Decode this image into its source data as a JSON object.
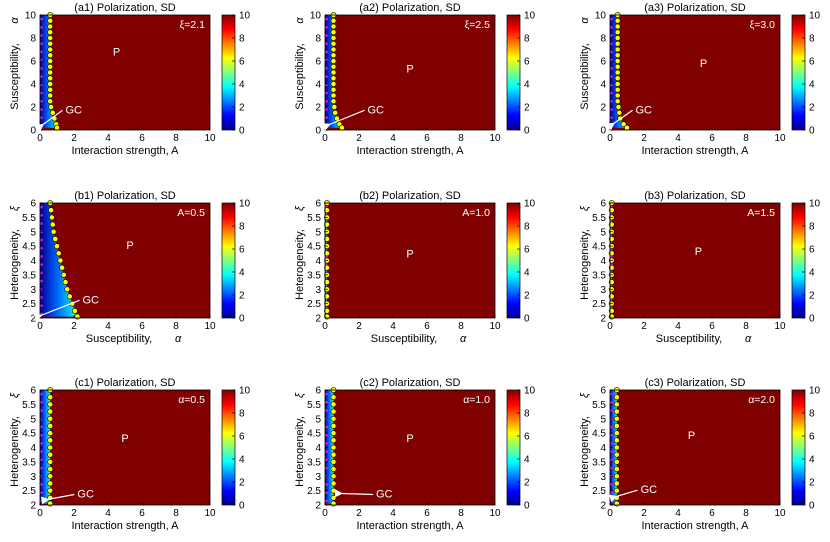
{
  "chart_data": [
    {
      "id": "a1",
      "type": "heatmap",
      "title": "(a1) Polarization, SD",
      "xlabel": "Interaction strength, A",
      "ylabel": "Susceptibility,",
      "ylabel_sym": "α",
      "param": "ξ=2.1",
      "xlim": [
        0,
        10
      ],
      "ylim": [
        0,
        10
      ],
      "xticks": [
        "0",
        "2",
        "4",
        "6",
        "8",
        "10"
      ],
      "yticks": [
        "0",
        "2",
        "4",
        "6",
        "8",
        "10"
      ],
      "cbar_ticks": [
        "0",
        "2",
        "4",
        "6",
        "8",
        "10"
      ],
      "label_p": "P",
      "label_gc": "GC",
      "p_pos": [
        4.5,
        6.5
      ],
      "gc_text": [
        1.5,
        1.8
      ],
      "gc_arrow": [
        0.2,
        0.5
      ],
      "boundary": [
        [
          0.6,
          10
        ],
        [
          0.6,
          9.5
        ],
        [
          0.6,
          9
        ],
        [
          0.6,
          8.5
        ],
        [
          0.6,
          8
        ],
        [
          0.6,
          7.5
        ],
        [
          0.6,
          7
        ],
        [
          0.6,
          6.5
        ],
        [
          0.6,
          6
        ],
        [
          0.6,
          5.5
        ],
        [
          0.6,
          5
        ],
        [
          0.6,
          4.5
        ],
        [
          0.6,
          4
        ],
        [
          0.6,
          3.5
        ],
        [
          0.6,
          3
        ],
        [
          0.6,
          2.5
        ],
        [
          0.65,
          2
        ],
        [
          0.75,
          1.5
        ],
        [
          0.85,
          1
        ],
        [
          0.95,
          0.5
        ],
        [
          1.0,
          0.2
        ]
      ]
    },
    {
      "id": "a2",
      "type": "heatmap",
      "title": "(a2) Polarization, SD",
      "xlabel": "Interaction strength, A",
      "ylabel": "Susceptibility,",
      "ylabel_sym": "α",
      "param": "ξ=2.5",
      "xlim": [
        0,
        10
      ],
      "ylim": [
        0,
        10
      ],
      "xticks": [
        "0",
        "2",
        "4",
        "6",
        "8",
        "10"
      ],
      "yticks": [
        "0",
        "2",
        "4",
        "6",
        "8",
        "10"
      ],
      "cbar_ticks": [
        "0",
        "2",
        "4",
        "6",
        "8",
        "10"
      ],
      "label_p": "P",
      "label_gc": "GC",
      "p_pos": [
        5,
        5
      ],
      "gc_text": [
        2.5,
        1.8
      ],
      "gc_arrow": [
        0.3,
        0.5
      ],
      "boundary": [
        [
          0.5,
          10
        ],
        [
          0.5,
          9.5
        ],
        [
          0.5,
          9
        ],
        [
          0.5,
          8.5
        ],
        [
          0.5,
          8
        ],
        [
          0.5,
          7.5
        ],
        [
          0.5,
          7
        ],
        [
          0.5,
          6.5
        ],
        [
          0.5,
          6
        ],
        [
          0.5,
          5.5
        ],
        [
          0.5,
          5
        ],
        [
          0.5,
          4.5
        ],
        [
          0.5,
          4
        ],
        [
          0.5,
          3.5
        ],
        [
          0.5,
          3
        ],
        [
          0.5,
          2.5
        ],
        [
          0.55,
          2
        ],
        [
          0.6,
          1.5
        ],
        [
          0.7,
          1
        ],
        [
          0.85,
          0.5
        ],
        [
          1.0,
          0.2
        ]
      ]
    },
    {
      "id": "a3",
      "type": "heatmap",
      "title": "(a3) Polarization, SD",
      "xlabel": "Interaction strength, A",
      "ylabel": "Susceptibility,",
      "ylabel_sym": "α",
      "param": "ξ=3.0",
      "xlim": [
        0,
        10
      ],
      "ylim": [
        0,
        10
      ],
      "xticks": [
        "0",
        "2",
        "4",
        "6",
        "8",
        "10"
      ],
      "yticks": [
        "0",
        "2",
        "4",
        "6",
        "8",
        "10"
      ],
      "cbar_ticks": [
        "0",
        "2",
        "4",
        "6",
        "8",
        "10"
      ],
      "label_p": "P",
      "label_gc": "GC",
      "p_pos": [
        5.5,
        5.5
      ],
      "gc_text": [
        1.5,
        1.8
      ],
      "gc_arrow": [
        0.25,
        0.6
      ],
      "boundary": [
        [
          0.45,
          10
        ],
        [
          0.45,
          9.5
        ],
        [
          0.45,
          9
        ],
        [
          0.45,
          8.5
        ],
        [
          0.45,
          8
        ],
        [
          0.45,
          7.5
        ],
        [
          0.45,
          7
        ],
        [
          0.45,
          6.5
        ],
        [
          0.45,
          6
        ],
        [
          0.45,
          5.5
        ],
        [
          0.45,
          5
        ],
        [
          0.45,
          4.5
        ],
        [
          0.45,
          4
        ],
        [
          0.45,
          3.5
        ],
        [
          0.45,
          3
        ],
        [
          0.45,
          2.5
        ],
        [
          0.5,
          2
        ],
        [
          0.55,
          1.5
        ],
        [
          0.6,
          1
        ],
        [
          0.8,
          0.5
        ],
        [
          1.0,
          0.2
        ]
      ]
    },
    {
      "id": "b1",
      "type": "heatmap",
      "title": "(b1) Polarization, SD",
      "xlabel": "Susceptibility,",
      "xlabel_sym": "α",
      "ylabel": "Heterogeneity,",
      "ylabel_sym": "ξ",
      "param": "A=0.5",
      "xlim": [
        0,
        10
      ],
      "ylim": [
        2,
        6
      ],
      "xticks": [
        "0",
        "2",
        "4",
        "6",
        "8",
        "10"
      ],
      "yticks": [
        "2",
        "2.5",
        "3",
        "3.5",
        "4",
        "4.5",
        "5",
        "5.5",
        "6"
      ],
      "cbar_ticks": [
        "0",
        "2",
        "4",
        "6",
        "8",
        "10"
      ],
      "label_p": "P",
      "label_gc": "GC",
      "p_pos": [
        5.3,
        4.4
      ],
      "gc_text": [
        2.5,
        2.65
      ],
      "gc_arrow": [
        0.1,
        2.1
      ],
      "boundary": [
        [
          0.6,
          6
        ],
        [
          0.65,
          5.75
        ],
        [
          0.7,
          5.5
        ],
        [
          0.75,
          5.25
        ],
        [
          0.8,
          5
        ],
        [
          0.9,
          4.75
        ],
        [
          1.0,
          4.5
        ],
        [
          1.1,
          4.25
        ],
        [
          1.2,
          4
        ],
        [
          1.3,
          3.75
        ],
        [
          1.4,
          3.5
        ],
        [
          1.5,
          3.25
        ],
        [
          1.6,
          3
        ],
        [
          1.75,
          2.75
        ],
        [
          1.9,
          2.5
        ],
        [
          2.05,
          2.25
        ],
        [
          2.2,
          2.05
        ]
      ]
    },
    {
      "id": "b2",
      "type": "heatmap",
      "title": "(b2) Polarization, SD",
      "xlabel": "Susceptibility,",
      "xlabel_sym": "α",
      "ylabel": "Heterogeneity,",
      "ylabel_sym": "ξ",
      "param": "A=1.0",
      "xlim": [
        0,
        10
      ],
      "ylim": [
        2,
        6
      ],
      "xticks": [
        "0",
        "2",
        "4",
        "6",
        "8",
        "10"
      ],
      "yticks": [
        "2",
        "2.5",
        "3",
        "3.5",
        "4",
        "4.5",
        "5",
        "5.5",
        "6"
      ],
      "cbar_ticks": [
        "0",
        "2",
        "4",
        "6",
        "8",
        "10"
      ],
      "label_p": "P",
      "label_gc": "",
      "p_pos": [
        5,
        4.1
      ],
      "gc_text": null,
      "gc_arrow": null,
      "boundary": [
        [
          0.12,
          6
        ],
        [
          0.12,
          5.75
        ],
        [
          0.12,
          5.5
        ],
        [
          0.12,
          5.25
        ],
        [
          0.12,
          5
        ],
        [
          0.12,
          4.75
        ],
        [
          0.12,
          4.5
        ],
        [
          0.12,
          4.25
        ],
        [
          0.12,
          4
        ],
        [
          0.12,
          3.75
        ],
        [
          0.12,
          3.5
        ],
        [
          0.12,
          3.25
        ],
        [
          0.12,
          3
        ],
        [
          0.12,
          2.75
        ],
        [
          0.12,
          2.5
        ],
        [
          0.12,
          2.25
        ],
        [
          0.12,
          2.05
        ]
      ]
    },
    {
      "id": "b3",
      "type": "heatmap",
      "title": "(b3) Polarization, SD",
      "xlabel": "Susceptibility,",
      "xlabel_sym": "α",
      "ylabel": "Heterogeneity,",
      "ylabel_sym": "ξ",
      "param": "A=1.5",
      "xlim": [
        0,
        10
      ],
      "ylim": [
        2,
        6
      ],
      "xticks": [
        "0",
        "2",
        "4",
        "6",
        "8",
        "10"
      ],
      "yticks": [
        "2",
        "2.5",
        "3",
        "3.5",
        "4",
        "4.5",
        "5",
        "5.5",
        "6"
      ],
      "cbar_ticks": [
        "0",
        "2",
        "4",
        "6",
        "8",
        "10"
      ],
      "label_p": "P",
      "label_gc": "",
      "p_pos": [
        5.2,
        4.2
      ],
      "gc_text": null,
      "gc_arrow": null,
      "boundary": [
        [
          0.1,
          6
        ],
        [
          0.1,
          5.75
        ],
        [
          0.1,
          5.5
        ],
        [
          0.1,
          5.25
        ],
        [
          0.1,
          5
        ],
        [
          0.1,
          4.75
        ],
        [
          0.1,
          4.5
        ],
        [
          0.1,
          4.25
        ],
        [
          0.1,
          4
        ],
        [
          0.1,
          3.75
        ],
        [
          0.1,
          3.5
        ],
        [
          0.1,
          3.25
        ],
        [
          0.1,
          3
        ],
        [
          0.1,
          2.75
        ],
        [
          0.1,
          2.5
        ],
        [
          0.1,
          2.25
        ],
        [
          0.1,
          2.05
        ]
      ]
    },
    {
      "id": "c1",
      "type": "heatmap",
      "title": "(c1) Polarization, SD",
      "xlabel": "Interaction strength, A",
      "ylabel": "Heterogeneity,",
      "ylabel_sym": "ξ",
      "param": "α=0.5",
      "xlim": [
        0,
        10
      ],
      "ylim": [
        2,
        6
      ],
      "xticks": [
        "0",
        "2",
        "4",
        "6",
        "8",
        "10"
      ],
      "yticks": [
        "2",
        "2.5",
        "3",
        "3.5",
        "4",
        "4.5",
        "5",
        "5.5",
        "6"
      ],
      "cbar_ticks": [
        "0",
        "2",
        "4",
        "6",
        "8",
        "10"
      ],
      "label_p": "P",
      "label_gc": "GC",
      "p_pos": [
        5,
        4.2
      ],
      "gc_text": [
        2.2,
        2.4
      ],
      "gc_arrow": [
        0.5,
        2.2
      ],
      "boundary": [
        [
          0.6,
          6
        ],
        [
          0.6,
          5.75
        ],
        [
          0.6,
          5.5
        ],
        [
          0.6,
          5.25
        ],
        [
          0.6,
          5
        ],
        [
          0.6,
          4.75
        ],
        [
          0.6,
          4.5
        ],
        [
          0.6,
          4.25
        ],
        [
          0.6,
          4
        ],
        [
          0.6,
          3.75
        ],
        [
          0.6,
          3.5
        ],
        [
          0.6,
          3.25
        ],
        [
          0.6,
          3
        ],
        [
          0.6,
          2.75
        ],
        [
          0.6,
          2.5
        ],
        [
          0.6,
          2.25
        ],
        [
          0.6,
          2.05
        ]
      ]
    },
    {
      "id": "c2",
      "type": "heatmap",
      "title": "(c2) Polarization, SD",
      "xlabel": "Interaction strength, A",
      "ylabel": "Heterogeneity,",
      "ylabel_sym": "ξ",
      "param": "α=1.0",
      "xlim": [
        0,
        10
      ],
      "ylim": [
        2,
        6
      ],
      "xticks": [
        "0",
        "2",
        "4",
        "6",
        "8",
        "10"
      ],
      "yticks": [
        "2",
        "2.5",
        "3",
        "3.5",
        "4",
        "4.5",
        "5",
        "5.5",
        "6"
      ],
      "cbar_ticks": [
        "0",
        "2",
        "4",
        "6",
        "8",
        "10"
      ],
      "label_p": "P",
      "label_gc": "GC",
      "p_pos": [
        5,
        4.2
      ],
      "gc_text": [
        3,
        2.4
      ],
      "gc_arrow": [
        1.0,
        2.4
      ],
      "boundary": [
        [
          0.5,
          6
        ],
        [
          0.5,
          5.75
        ],
        [
          0.5,
          5.5
        ],
        [
          0.5,
          5.25
        ],
        [
          0.5,
          5
        ],
        [
          0.5,
          4.75
        ],
        [
          0.5,
          4.5
        ],
        [
          0.5,
          4.25
        ],
        [
          0.5,
          4
        ],
        [
          0.5,
          3.75
        ],
        [
          0.5,
          3.5
        ],
        [
          0.5,
          3.25
        ],
        [
          0.5,
          3
        ],
        [
          0.5,
          2.75
        ],
        [
          0.5,
          2.5
        ],
        [
          0.5,
          2.25
        ],
        [
          0.5,
          2.05
        ]
      ]
    },
    {
      "id": "c3",
      "type": "heatmap",
      "title": "(c3) Polarization, SD",
      "xlabel": "Interaction strength, A",
      "ylabel": "Heterogeneity,",
      "ylabel_sym": "ξ",
      "param": "α=2.0",
      "xlim": [
        0,
        10
      ],
      "ylim": [
        2,
        6
      ],
      "xticks": [
        "0",
        "2",
        "4",
        "6",
        "8",
        "10"
      ],
      "yticks": [
        "2",
        "2.5",
        "3",
        "3.5",
        "4",
        "4.5",
        "5",
        "5.5",
        "6"
      ],
      "cbar_ticks": [
        "0",
        "2",
        "4",
        "6",
        "8",
        "10"
      ],
      "label_p": "P",
      "label_gc": "GC",
      "p_pos": [
        4.8,
        4.3
      ],
      "gc_text": [
        1.8,
        2.55
      ],
      "gc_arrow": [
        0.4,
        2.3
      ],
      "boundary": [
        [
          0.4,
          6
        ],
        [
          0.4,
          5.75
        ],
        [
          0.4,
          5.5
        ],
        [
          0.4,
          5.25
        ],
        [
          0.4,
          5
        ],
        [
          0.4,
          4.75
        ],
        [
          0.4,
          4.5
        ],
        [
          0.4,
          4.25
        ],
        [
          0.4,
          4
        ],
        [
          0.4,
          3.75
        ],
        [
          0.4,
          3.5
        ],
        [
          0.4,
          3.25
        ],
        [
          0.4,
          3
        ],
        [
          0.4,
          2.75
        ],
        [
          0.4,
          2.5
        ],
        [
          0.4,
          2.25
        ],
        [
          0.4,
          2.05
        ]
      ]
    }
  ],
  "colors": {
    "polarized": "#800000",
    "boundary_marker": "#ffff00",
    "gc_marker": "#ff00ff"
  }
}
